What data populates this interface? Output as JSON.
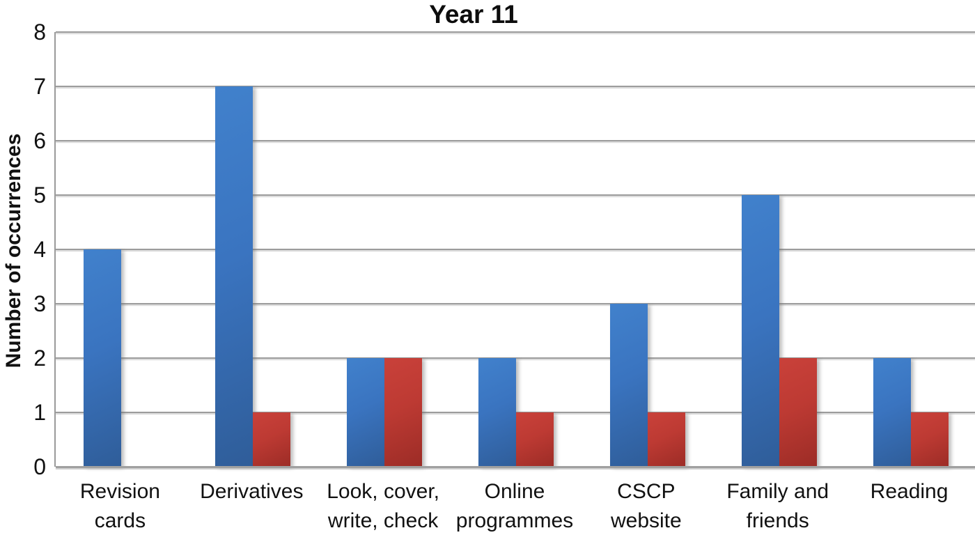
{
  "chart_data": {
    "type": "bar",
    "title": "Year 11",
    "xlabel": "",
    "ylabel": "Number of occurrences",
    "categories": [
      "Revision cards",
      "Derivatives",
      "Look, cover, write, check",
      "Online programmes",
      "CSCP website",
      "Family and friends",
      "Reading"
    ],
    "category_lines": [
      [
        "Revision",
        "cards"
      ],
      [
        "Derivatives"
      ],
      [
        "Look, cover,",
        "write, check"
      ],
      [
        "Online",
        "programmes"
      ],
      [
        "CSCP",
        "website"
      ],
      [
        "Family and",
        "friends"
      ],
      [
        "Reading"
      ]
    ],
    "series": [
      {
        "name": "blue",
        "color_top": "#4181CC",
        "color_bottom": "#2F5D99",
        "values": [
          4,
          7,
          2,
          2,
          3,
          5,
          2
        ]
      },
      {
        "name": "red",
        "color_top": "#C9413A",
        "color_bottom": "#9C2C26",
        "values": [
          0,
          1,
          2,
          1,
          1,
          2,
          1
        ]
      }
    ],
    "ylim": [
      0,
      8
    ],
    "yticks": [
      0,
      1,
      2,
      3,
      4,
      5,
      6,
      7,
      8
    ],
    "grid": true,
    "legend": false,
    "gridline_color": "#9C9C9C",
    "axis_color": "#A0A0A0"
  }
}
